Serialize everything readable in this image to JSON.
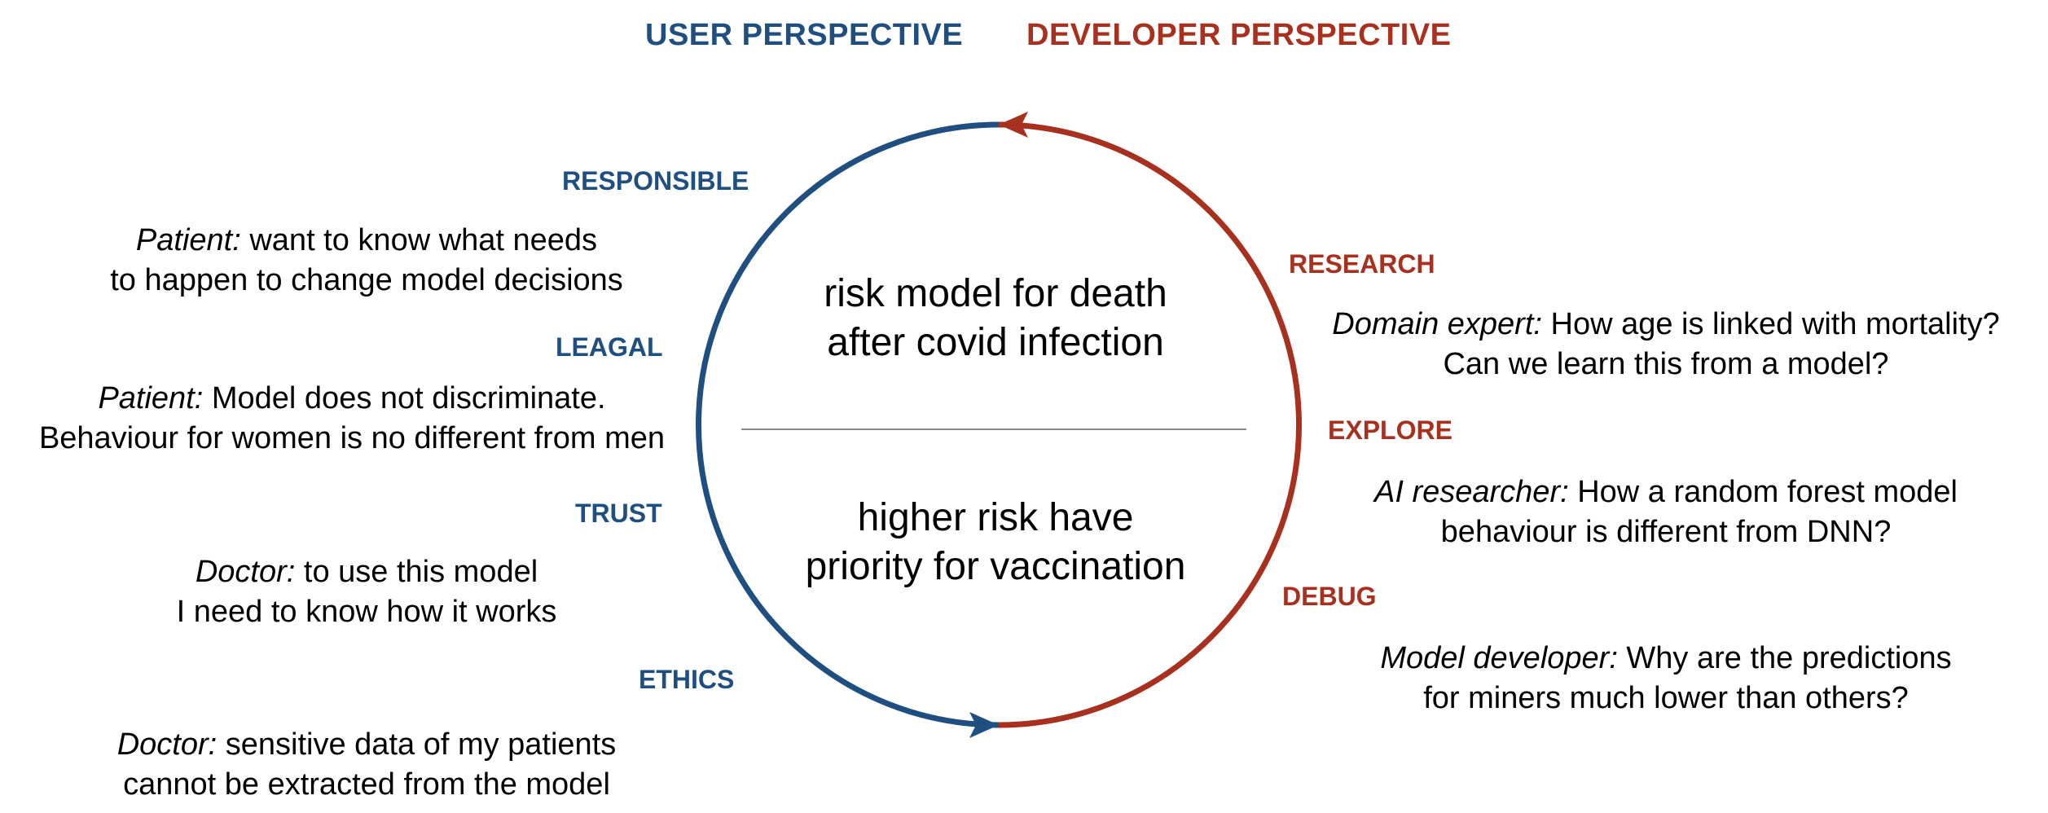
{
  "headings": {
    "user": "USER PERSPECTIVE",
    "developer": "DEVELOPER PERSPECTIVE"
  },
  "colors": {
    "user": "#1f4e80",
    "developer": "#a8301f",
    "divider": "#888888"
  },
  "center": {
    "top": [
      "risk model for death",
      "after covid infection"
    ],
    "bottom": [
      "higher risk have",
      "priority for vaccination"
    ]
  },
  "user_items": [
    {
      "label": "RESPONSIBLE",
      "role": "Patient:",
      "line1": " want to know what needs",
      "line2": "to happen to change model decisions"
    },
    {
      "label": "LEAGAL",
      "role": "Patient:",
      "line1": " Model does not discriminate.",
      "line2": "Behaviour for women is no different from men"
    },
    {
      "label": "TRUST",
      "role": "Doctor:",
      "line1": " to use this model",
      "line2": "I need to know how it works"
    },
    {
      "label": "ETHICS",
      "role": "Doctor:",
      "line1": " sensitive data of my patients",
      "line2": "cannot be extracted from the model"
    }
  ],
  "developer_items": [
    {
      "label": "RESEARCH",
      "role": "Domain expert:",
      "line1": " How age is linked with mortality?",
      "line2": "Can we learn this from a model?"
    },
    {
      "label": "EXPLORE",
      "role": "AI researcher:",
      "line1": " How a random forest model",
      "line2": "behaviour is different from DNN?"
    },
    {
      "label": "DEBUG",
      "role": "Model developer:",
      "line1": " Why are the predictions",
      "line2": "for miners much lower than others?"
    }
  ]
}
